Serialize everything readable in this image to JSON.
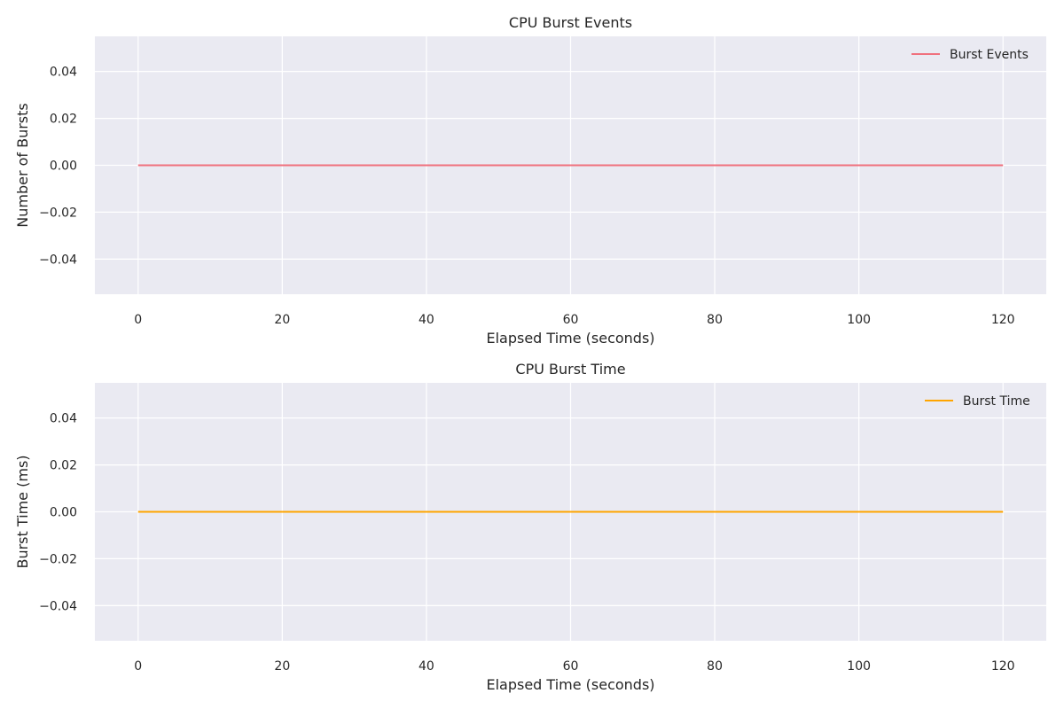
{
  "chart_data": [
    {
      "type": "line",
      "title": "CPU Burst Events",
      "xlabel": "Elapsed Time (seconds)",
      "ylabel": "Number of Bursts",
      "xlim": [
        -6,
        126
      ],
      "ylim": [
        -0.055,
        0.055
      ],
      "xticks": [
        0,
        20,
        40,
        60,
        80,
        100,
        120
      ],
      "yticks": [
        -0.04,
        -0.02,
        0.0,
        0.02,
        0.04
      ],
      "ytick_labels": [
        "−0.04",
        "−0.02",
        "0.00",
        "0.02",
        "0.04"
      ],
      "grid": true,
      "legend_position": "top-right",
      "series": [
        {
          "name": "Burst Events",
          "color": "#F0717E",
          "x": [
            0,
            120
          ],
          "y": [
            0,
            0
          ]
        }
      ]
    },
    {
      "type": "line",
      "title": "CPU Burst Time",
      "xlabel": "Elapsed Time (seconds)",
      "ylabel": "Burst Time (ms)",
      "xlim": [
        -6,
        126
      ],
      "ylim": [
        -0.055,
        0.055
      ],
      "xticks": [
        0,
        20,
        40,
        60,
        80,
        100,
        120
      ],
      "yticks": [
        -0.04,
        -0.02,
        0.0,
        0.02,
        0.04
      ],
      "ytick_labels": [
        "−0.04",
        "−0.02",
        "0.00",
        "0.02",
        "0.04"
      ],
      "grid": true,
      "legend_position": "top-right",
      "series": [
        {
          "name": "Burst Time",
          "color": "#FFA500",
          "x": [
            0,
            120
          ],
          "y": [
            0,
            0
          ]
        }
      ]
    }
  ]
}
